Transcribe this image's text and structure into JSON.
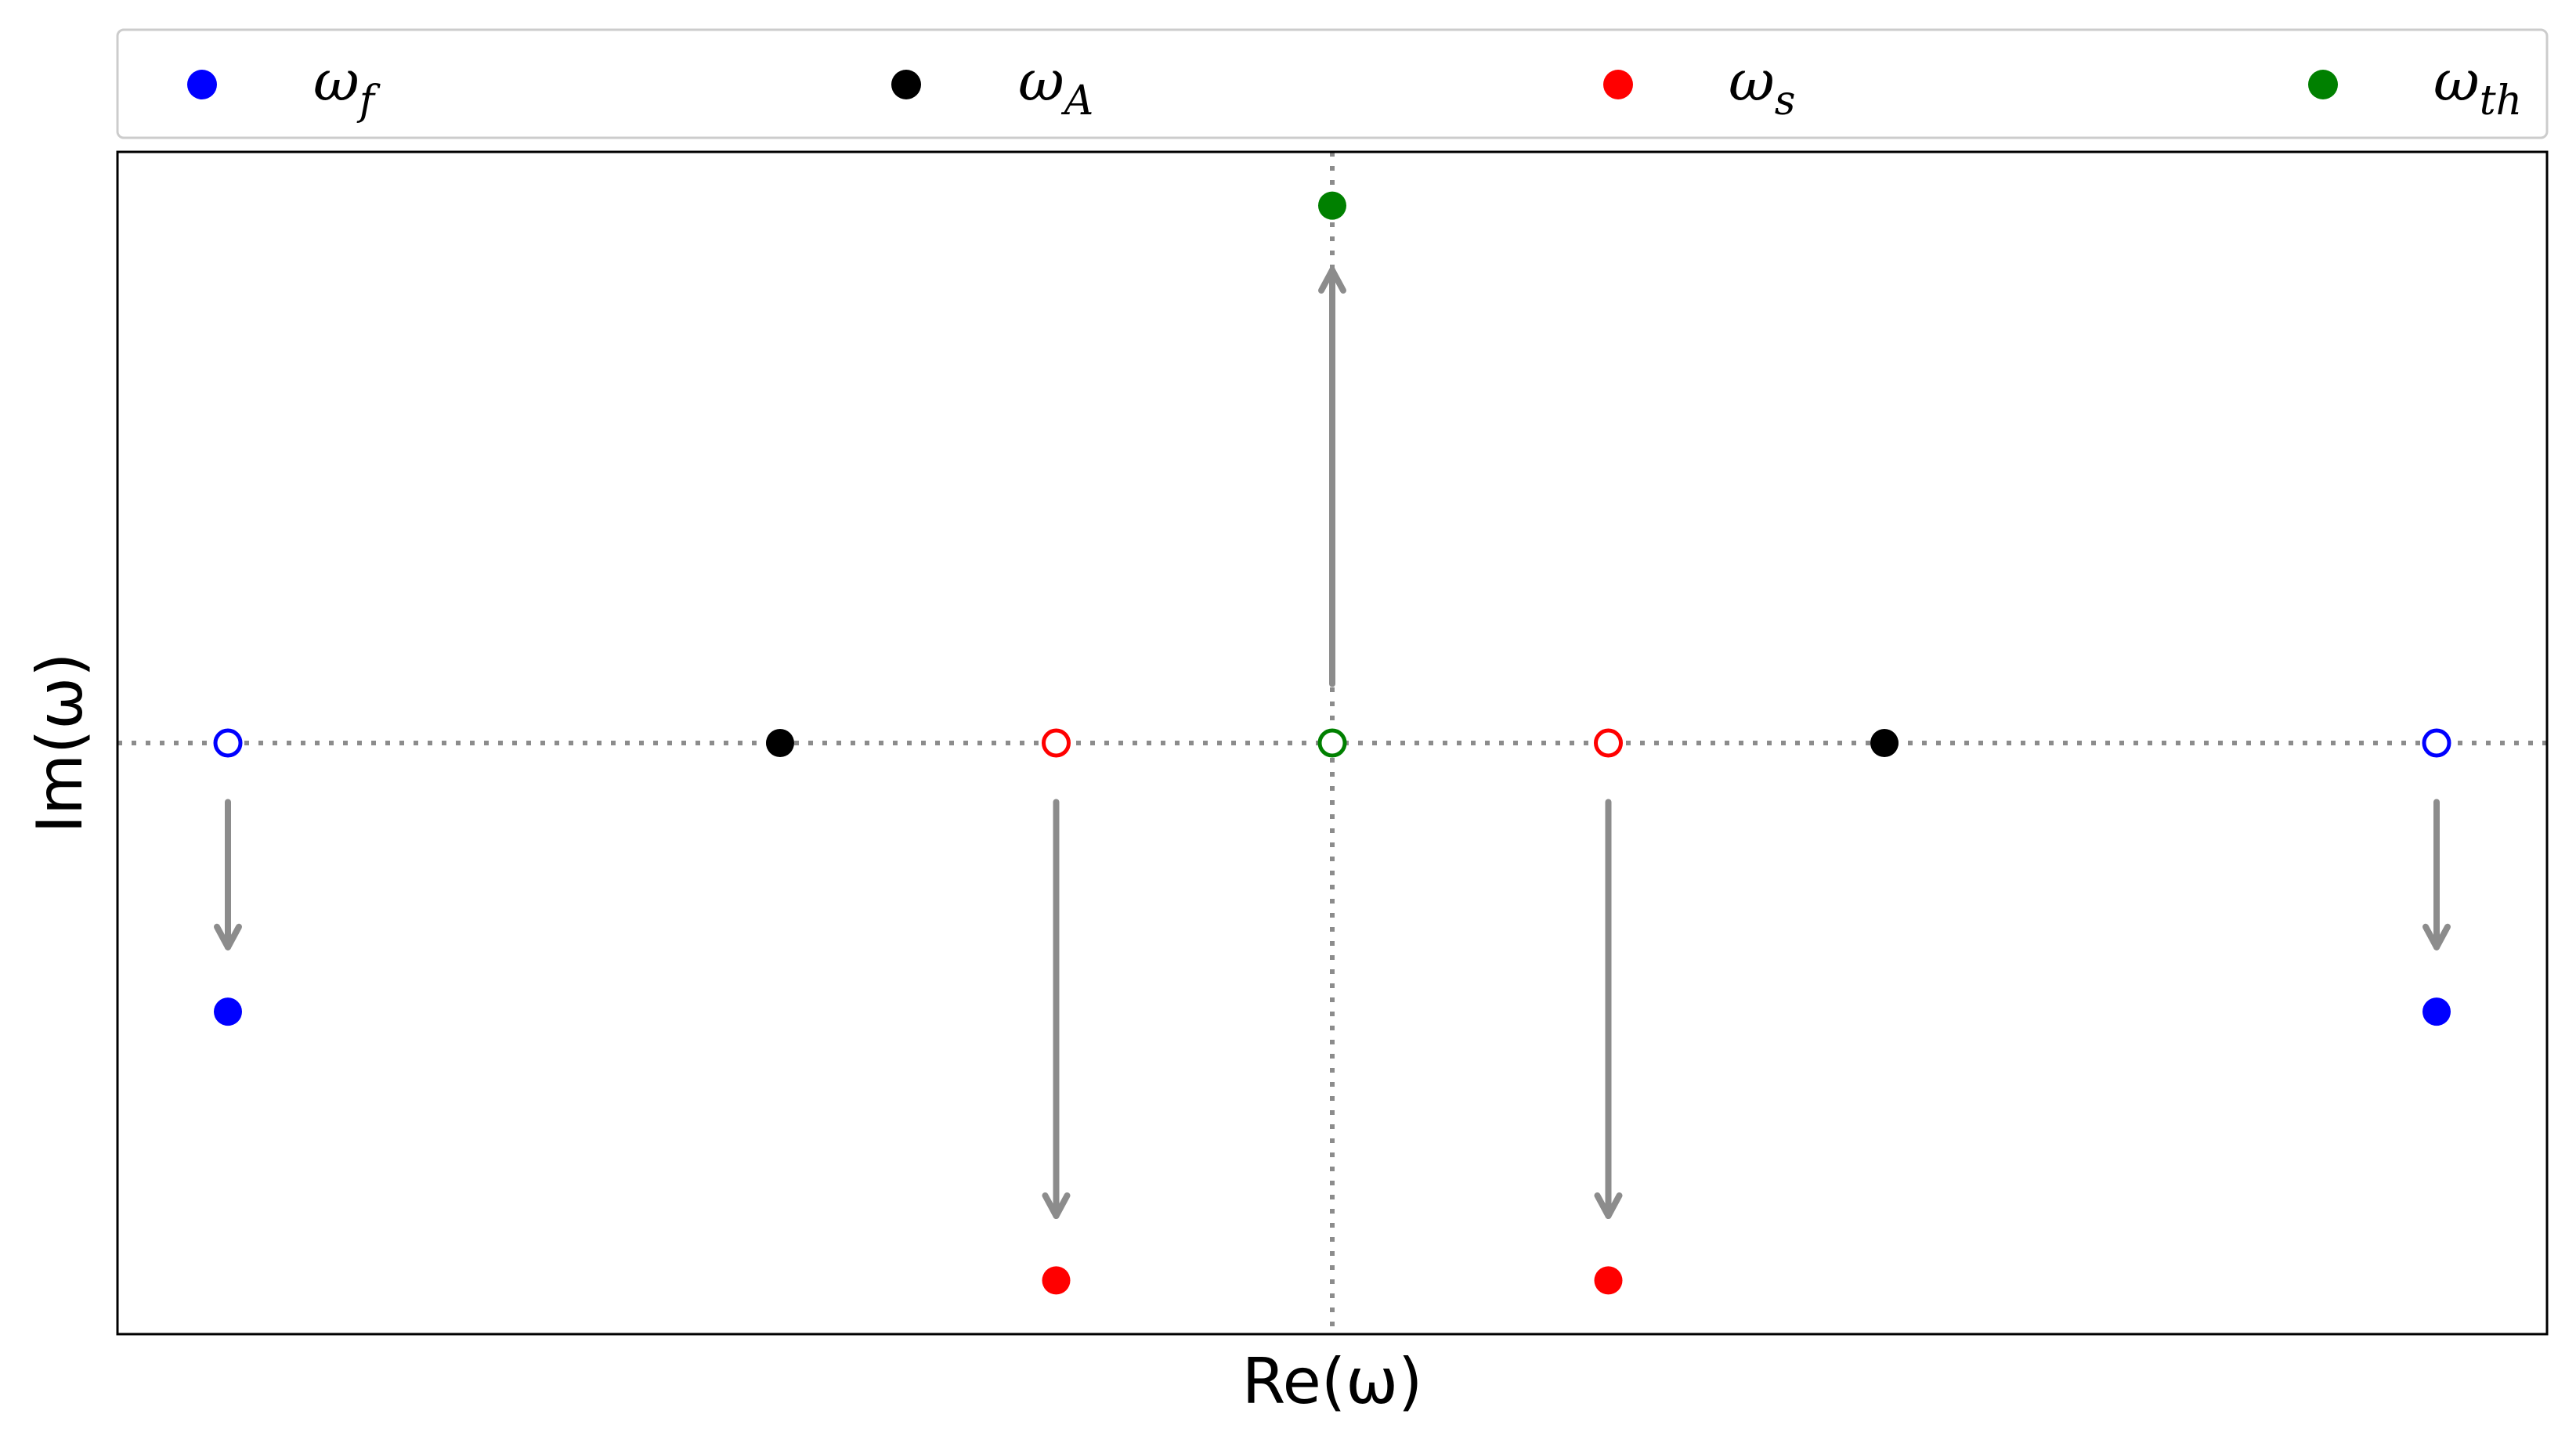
{
  "chart_data": {
    "type": "scatter",
    "title": "",
    "xlabel": "Re(ω)",
    "ylabel": "Im(ω)",
    "xlim": [
      -4.4,
      4.4
    ],
    "ylim": [
      -1.1,
      1.1
    ],
    "grid": false,
    "reference_lines": {
      "horizontal_at_y": 0,
      "vertical_at_x": 0,
      "style": "dotted",
      "color": "#8c8c8c"
    },
    "legend": {
      "placement": "top, above plot",
      "entries": [
        {
          "key": "omega_f",
          "symbol": "ω",
          "sub": "f",
          "color": "#0000ff"
        },
        {
          "key": "omega_A",
          "symbol": "ω",
          "sub": "A",
          "color": "#000000"
        },
        {
          "key": "omega_s",
          "symbol": "ω",
          "sub": "s",
          "color": "#ff0000"
        },
        {
          "key": "omega_th",
          "symbol": "ω",
          "sub": "th",
          "color": "#008000"
        }
      ]
    },
    "series": [
      {
        "name": "ωf",
        "color": "#0000ff",
        "initial": [
          {
            "x": -4,
            "y": 0
          },
          {
            "x": 4,
            "y": 0
          }
        ],
        "final": [
          {
            "x": -4,
            "y": -0.5
          },
          {
            "x": 4,
            "y": -0.5
          }
        ]
      },
      {
        "name": "ωA",
        "color": "#000000",
        "initial": [],
        "final": [
          {
            "x": -2,
            "y": 0
          },
          {
            "x": 2,
            "y": 0
          }
        ]
      },
      {
        "name": "ωs",
        "color": "#ff0000",
        "initial": [
          {
            "x": -1,
            "y": 0
          },
          {
            "x": 1,
            "y": 0
          }
        ],
        "final": [
          {
            "x": -1,
            "y": -1
          },
          {
            "x": 1,
            "y": -1
          }
        ]
      },
      {
        "name": "ωth",
        "color": "#008000",
        "initial": [
          {
            "x": 0,
            "y": 0
          }
        ],
        "final": [
          {
            "x": 0,
            "y": 1
          }
        ]
      }
    ],
    "arrows": [
      {
        "x": -4,
        "from_y": -0.11,
        "to_y": -0.38
      },
      {
        "x": 4,
        "from_y": -0.11,
        "to_y": -0.38
      },
      {
        "x": -1,
        "from_y": -0.11,
        "to_y": -0.88
      },
      {
        "x": 1,
        "from_y": -0.11,
        "to_y": -0.88
      },
      {
        "x": 0,
        "from_y": 0.11,
        "to_y": 0.88
      }
    ],
    "arrow_color": "#8c8c8c"
  }
}
